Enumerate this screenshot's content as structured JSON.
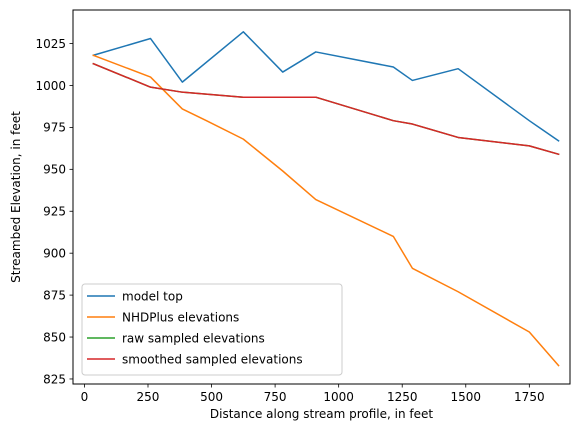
{
  "chart_data": {
    "type": "line",
    "title": "",
    "xlabel": "Distance along stream profile, in feet",
    "ylabel": "Streambed Elevation, in feet",
    "xlim": [
      -45,
      1910
    ],
    "ylim": [
      822,
      1045
    ],
    "xticks": [
      0,
      250,
      500,
      750,
      1000,
      1250,
      1500,
      1750
    ],
    "yticks": [
      825,
      850,
      875,
      900,
      925,
      950,
      975,
      1000,
      1025
    ],
    "grid": false,
    "legend_position": "lower-left",
    "series": [
      {
        "name": "model top",
        "color": "#1f77b4",
        "x": [
          35,
          260,
          385,
          625,
          780,
          910,
          1215,
          1290,
          1470,
          1750,
          1865
        ],
        "y": [
          1018,
          1028,
          1002,
          1032,
          1008,
          1020,
          1011,
          1003,
          1010,
          979,
          967
        ]
      },
      {
        "name": "NHDPlus elevations",
        "color": "#ff7f0e",
        "x": [
          35,
          260,
          385,
          480,
          625,
          780,
          910,
          1215,
          1290,
          1470,
          1750,
          1865
        ],
        "y": [
          1018,
          1005,
          986,
          979,
          968,
          949,
          932,
          910,
          891,
          877,
          853,
          833
        ]
      },
      {
        "name": "raw sampled elevations",
        "color": "#2ca02c",
        "x": [
          35,
          260,
          385,
          625,
          780,
          910,
          1215,
          1290,
          1470,
          1750,
          1865
        ],
        "y": [
          1013,
          999,
          996,
          993,
          993,
          993,
          979,
          977,
          969,
          964,
          959
        ]
      },
      {
        "name": "smoothed sampled elevations",
        "color": "#d62728",
        "x": [
          35,
          260,
          385,
          625,
          780,
          910,
          1215,
          1290,
          1470,
          1750,
          1865
        ],
        "y": [
          1013,
          999,
          996,
          993,
          993,
          993,
          979,
          977,
          969,
          964,
          959
        ]
      }
    ]
  }
}
